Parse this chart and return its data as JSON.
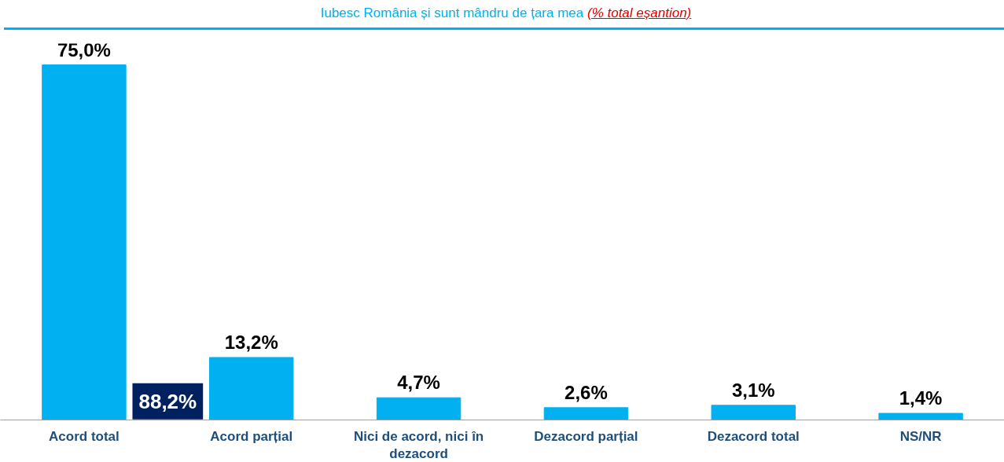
{
  "chart_data": {
    "type": "bar",
    "title": "Iubesc România și sunt mândru de țara mea",
    "subtitle": "(% total eșantion)",
    "categories": [
      "Acord total",
      "Acord parțial",
      "Nici de acord, nici în dezacord",
      "Dezacord parțial",
      "Dezacord total",
      "NS/NR"
    ],
    "values": [
      75.0,
      13.2,
      4.7,
      2.6,
      3.1,
      1.4
    ],
    "color": "#00b0f0",
    "value_labels": [
      "75,0%",
      "13,2%",
      "4,7%",
      "2,6%",
      "3,1%",
      "1,4%"
    ],
    "annotations": [
      "88,2%"
    ],
    "grid": false
  }
}
